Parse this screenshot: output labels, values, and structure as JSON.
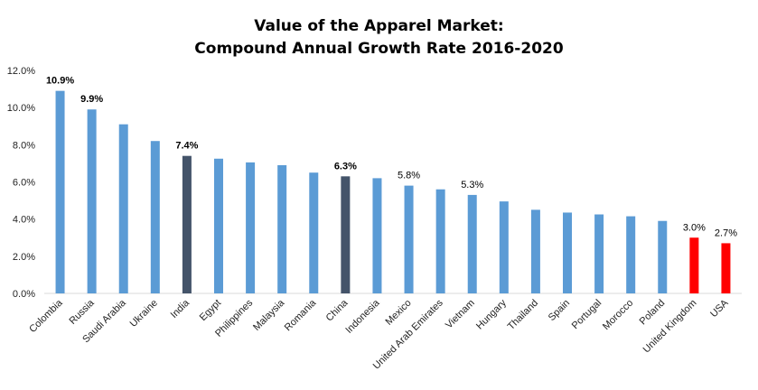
{
  "chart_data": {
    "type": "bar",
    "title_lines": [
      "Value of the Apparel Market:",
      "Compound  Annual  Growth  Rate 2016-2020"
    ],
    "xlabel": "",
    "ylabel": "",
    "ylim": [
      0,
      12
    ],
    "yticks": [
      0,
      2,
      4,
      6,
      8,
      10,
      12
    ],
    "ytick_labels": [
      "0.0%",
      "2.0%",
      "4.0%",
      "6.0%",
      "8.0%",
      "10.0%",
      "12.0%"
    ],
    "grid": false,
    "legend": "none",
    "categories": [
      "Colombia",
      "Russia",
      "Saudi Arabia",
      "Ukraine",
      "India",
      "Egypt",
      "Philippines",
      "Malaysia",
      "Romania",
      "China",
      "Indonesia",
      "Mexico",
      "United Arab Emirates",
      "Vietnam",
      "Hungary",
      "Thailand",
      "Spain",
      "Portugal",
      "Morocco",
      "Poland",
      "United Kingdom",
      "USA"
    ],
    "values": [
      10.9,
      9.9,
      9.1,
      8.2,
      7.4,
      7.25,
      7.05,
      6.9,
      6.5,
      6.3,
      6.2,
      5.8,
      5.6,
      5.3,
      4.95,
      4.5,
      4.35,
      4.25,
      4.15,
      3.9,
      3.0,
      2.7
    ],
    "bar_colors": [
      "#5b9bd5",
      "#5b9bd5",
      "#5b9bd5",
      "#5b9bd5",
      "#44546a",
      "#5b9bd5",
      "#5b9bd5",
      "#5b9bd5",
      "#5b9bd5",
      "#44546a",
      "#5b9bd5",
      "#5b9bd5",
      "#5b9bd5",
      "#5b9bd5",
      "#5b9bd5",
      "#5b9bd5",
      "#5b9bd5",
      "#5b9bd5",
      "#5b9bd5",
      "#5b9bd5",
      "#ff0000",
      "#ff0000"
    ],
    "data_labels": [
      {
        "index": 0,
        "text": "10.9%",
        "bold": true,
        "color": "#000000"
      },
      {
        "index": 1,
        "text": "9.9%",
        "bold": true,
        "color": "#000000"
      },
      {
        "index": 4,
        "text": "7.4%",
        "bold": true,
        "color": "#000000"
      },
      {
        "index": 9,
        "text": "6.3%",
        "bold": true,
        "color": "#000000"
      },
      {
        "index": 11,
        "text": "5.8%",
        "bold": false,
        "color": "#000000"
      },
      {
        "index": 13,
        "text": "5.3%",
        "bold": false,
        "color": "#000000"
      },
      {
        "index": 20,
        "text": "3.0%",
        "bold": false,
        "color": "#ff0000"
      },
      {
        "index": 21,
        "text": "2.7%",
        "bold": false,
        "color": "#ff0000"
      }
    ]
  }
}
